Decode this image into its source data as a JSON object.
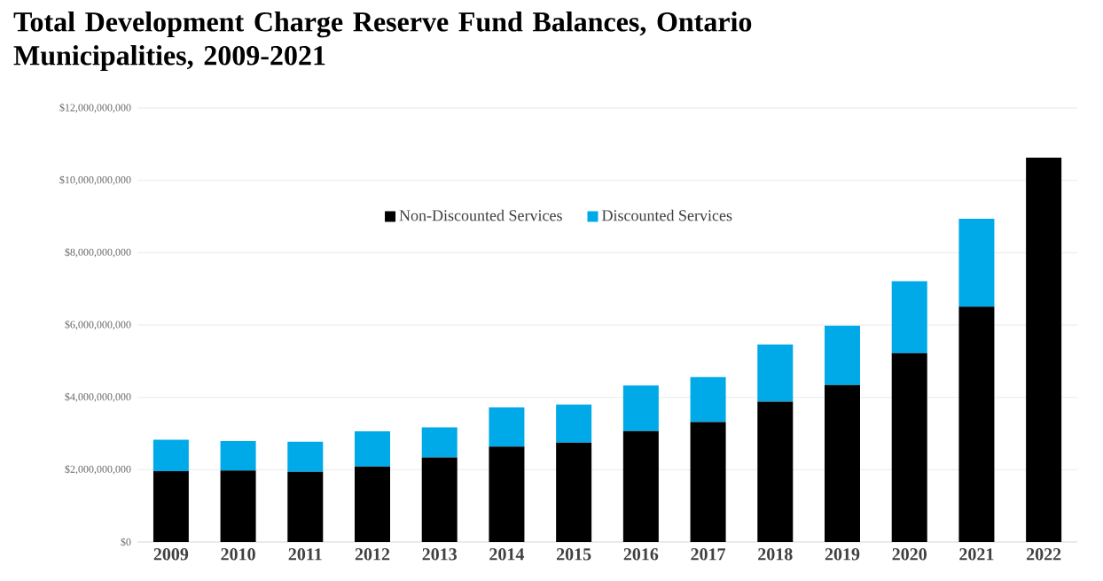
{
  "chart_data": {
    "type": "bar",
    "title": "Total Development Charge Reserve Fund Balances, Ontario Municipalities, 2009-2021",
    "categories": [
      "2009",
      "2010",
      "2011",
      "2012",
      "2013",
      "2014",
      "2015",
      "2016",
      "2017",
      "2018",
      "2019",
      "2020",
      "2021",
      "2022"
    ],
    "stacked": true,
    "series": [
      {
        "name": "Non-Discounted Services",
        "color": "#000000",
        "values": [
          1960000000,
          1980000000,
          1940000000,
          2090000000,
          2340000000,
          2640000000,
          2750000000,
          3070000000,
          3320000000,
          3880000000,
          4340000000,
          5220000000,
          6510000000,
          10630000000
        ]
      },
      {
        "name": "Discounted Services",
        "color": "#00a9e8",
        "values": [
          870000000,
          810000000,
          830000000,
          970000000,
          830000000,
          1080000000,
          1050000000,
          1260000000,
          1240000000,
          1580000000,
          1640000000,
          1990000000,
          2430000000,
          null
        ]
      }
    ],
    "ylim": [
      0,
      12000000000
    ],
    "yticks": [
      {
        "value": 0,
        "label": "$0"
      },
      {
        "value": 2000000000,
        "label": "$2,000,000,000"
      },
      {
        "value": 4000000000,
        "label": "$4,000,000,000"
      },
      {
        "value": 6000000000,
        "label": "$6,000,000,000"
      },
      {
        "value": 8000000000,
        "label": "$8,000,000,000"
      },
      {
        "value": 10000000000,
        "label": "$10,000,000,000"
      },
      {
        "value": 12000000000,
        "label": "$12,000,000,000"
      }
    ],
    "grid": "y",
    "legend": "top"
  }
}
